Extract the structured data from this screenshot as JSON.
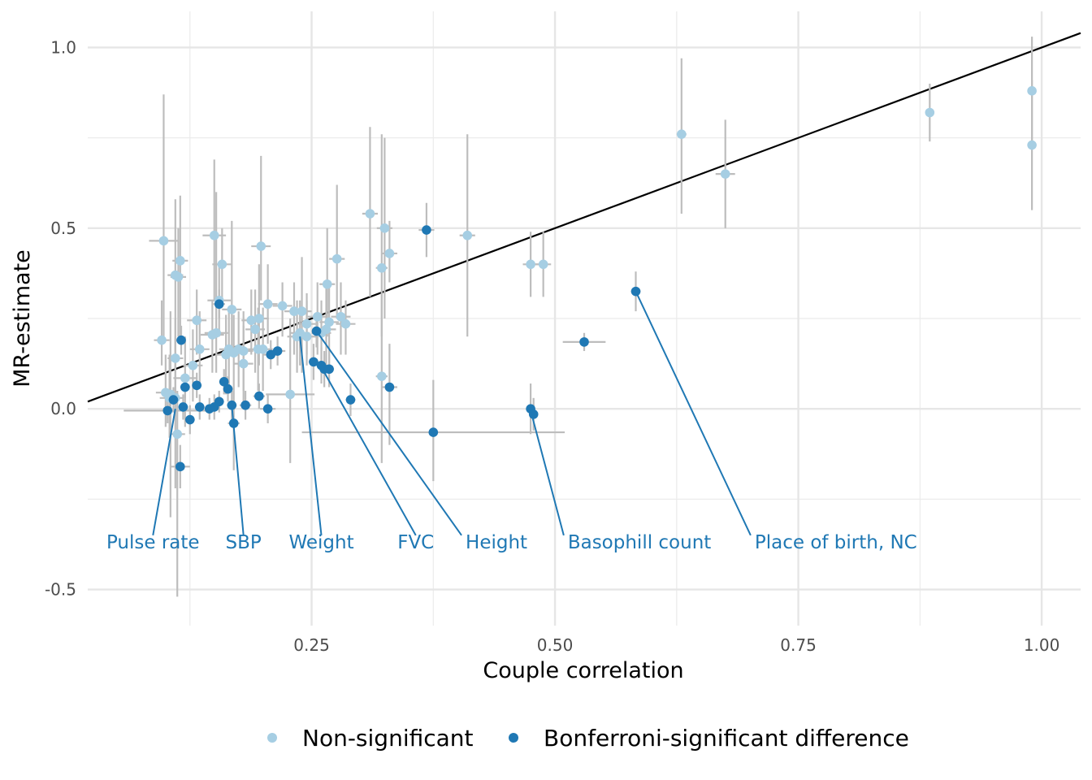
{
  "chart_data": {
    "type": "scatter",
    "title": "",
    "xlabel": "Couple correlation",
    "ylabel": "MR-estimate",
    "xlim": [
      0.02,
      1.04
    ],
    "ylim": [
      -0.6,
      1.1
    ],
    "x_ticks": [
      0.25,
      0.5,
      0.75,
      1.0
    ],
    "x_tick_labels": [
      "0.25",
      "0.50",
      "0.75",
      "1.00"
    ],
    "y_ticks": [
      -0.5,
      0.0,
      0.5,
      1.0
    ],
    "y_tick_labels": [
      "-0.5",
      "0.0",
      "0.5",
      "1.0"
    ],
    "grid": true,
    "legend_position": "bottom",
    "reference_line": {
      "intercept": 0,
      "slope": 1,
      "color": "#000000"
    },
    "colors": {
      "non_significant": "#a6cee3",
      "significant": "#1f78b4",
      "error_bar": "#bdbdbd"
    },
    "legend": [
      {
        "key": "non_significant",
        "label": "Non-significant"
      },
      {
        "key": "significant",
        "label": "Bonferroni-significant difference"
      }
    ],
    "series": [
      {
        "name": "Non-significant",
        "key": "non_significant",
        "points": [
          {
            "x": 0.99,
            "y": 0.88,
            "xerr": 0.003,
            "ylo": 0.74,
            "yhi": 1.03
          },
          {
            "x": 0.99,
            "y": 0.73,
            "xerr": 0.003,
            "ylo": 0.55,
            "yhi": 0.91
          },
          {
            "x": 0.885,
            "y": 0.82,
            "xerr": 0.003,
            "ylo": 0.74,
            "yhi": 0.9
          },
          {
            "x": 0.63,
            "y": 0.76,
            "xerr": 0.005,
            "ylo": 0.54,
            "yhi": 0.97
          },
          {
            "x": 0.675,
            "y": 0.65,
            "xerr": 0.01,
            "ylo": 0.5,
            "yhi": 0.8
          },
          {
            "x": 0.41,
            "y": 0.48,
            "xerr": 0.008,
            "ylo": 0.2,
            "yhi": 0.76
          },
          {
            "x": 0.475,
            "y": 0.4,
            "xerr": 0.008,
            "ylo": 0.31,
            "yhi": 0.49
          },
          {
            "x": 0.488,
            "y": 0.4,
            "xerr": 0.008,
            "ylo": 0.31,
            "yhi": 0.49
          },
          {
            "x": 0.31,
            "y": 0.54,
            "xerr": 0.008,
            "ylo": 0.31,
            "yhi": 0.78
          },
          {
            "x": 0.325,
            "y": 0.5,
            "xerr": 0.008,
            "ylo": 0.25,
            "yhi": 0.75
          },
          {
            "x": 0.33,
            "y": 0.43,
            "xerr": 0.008,
            "ylo": 0.35,
            "yhi": 0.52
          },
          {
            "x": 0.322,
            "y": 0.39,
            "xerr": 0.006,
            "ylo": 0.2,
            "yhi": 0.76
          },
          {
            "x": 0.322,
            "y": 0.09,
            "xerr": 0.006,
            "ylo": -0.15,
            "yhi": 0.32
          },
          {
            "x": 0.276,
            "y": 0.415,
            "xerr": 0.008,
            "ylo": 0.25,
            "yhi": 0.62
          },
          {
            "x": 0.266,
            "y": 0.345,
            "xerr": 0.008,
            "ylo": 0.2,
            "yhi": 0.5
          },
          {
            "x": 0.28,
            "y": 0.255,
            "xerr": 0.01,
            "ylo": 0.15,
            "yhi": 0.35
          },
          {
            "x": 0.285,
            "y": 0.235,
            "xerr": 0.01,
            "ylo": 0.15,
            "yhi": 0.3
          },
          {
            "x": 0.268,
            "y": 0.24,
            "xerr": 0.01,
            "ylo": 0.1,
            "yhi": 0.35
          },
          {
            "x": 0.265,
            "y": 0.22,
            "xerr": 0.01,
            "ylo": 0.1,
            "yhi": 0.35
          },
          {
            "x": 0.26,
            "y": 0.21,
            "xerr": 0.01,
            "ylo": 0.1,
            "yhi": 0.3
          },
          {
            "x": 0.256,
            "y": 0.255,
            "xerr": 0.01,
            "ylo": 0.15,
            "yhi": 0.35
          },
          {
            "x": 0.245,
            "y": 0.235,
            "xerr": 0.01,
            "ylo": 0.15,
            "yhi": 0.32
          },
          {
            "x": 0.24,
            "y": 0.27,
            "xerr": 0.01,
            "ylo": 0.1,
            "yhi": 0.42
          },
          {
            "x": 0.232,
            "y": 0.27,
            "xerr": 0.01,
            "ylo": 0.15,
            "yhi": 0.35
          },
          {
            "x": 0.22,
            "y": 0.285,
            "xerr": 0.01,
            "ylo": 0.2,
            "yhi": 0.35
          },
          {
            "x": 0.245,
            "y": 0.2,
            "xerr": 0.01,
            "ylo": 0.12,
            "yhi": 0.3
          },
          {
            "x": 0.238,
            "y": 0.21,
            "xerr": 0.01,
            "ylo": 0.12,
            "yhi": 0.3
          },
          {
            "x": 0.235,
            "y": 0.2,
            "xerr": 0.01,
            "ylo": 0.1,
            "yhi": 0.3
          },
          {
            "x": 0.228,
            "y": 0.04,
            "xerr": 0.025,
            "ylo": -0.15,
            "yhi": 0.25
          },
          {
            "x": 0.205,
            "y": 0.29,
            "xerr": 0.01,
            "ylo": 0.18,
            "yhi": 0.4
          },
          {
            "x": 0.198,
            "y": 0.45,
            "xerr": 0.01,
            "ylo": 0.3,
            "yhi": 0.7
          },
          {
            "x": 0.196,
            "y": 0.25,
            "xerr": 0.01,
            "ylo": 0.12,
            "yhi": 0.4
          },
          {
            "x": 0.195,
            "y": 0.165,
            "xerr": 0.01,
            "ylo": 0.05,
            "yhi": 0.28
          },
          {
            "x": 0.2,
            "y": 0.165,
            "xerr": 0.01,
            "ylo": 0.05,
            "yhi": 0.28
          },
          {
            "x": 0.188,
            "y": 0.245,
            "xerr": 0.01,
            "ylo": 0.15,
            "yhi": 0.33
          },
          {
            "x": 0.192,
            "y": 0.22,
            "xerr": 0.01,
            "ylo": 0.1,
            "yhi": 0.33
          },
          {
            "x": 0.18,
            "y": 0.16,
            "xerr": 0.01,
            "ylo": 0.05,
            "yhi": 0.27
          },
          {
            "x": 0.18,
            "y": 0.125,
            "xerr": 0.01,
            "ylo": 0.02,
            "yhi": 0.23
          },
          {
            "x": 0.175,
            "y": 0.165,
            "xerr": 0.01,
            "ylo": 0.06,
            "yhi": 0.27
          },
          {
            "x": 0.17,
            "y": 0.155,
            "xerr": 0.01,
            "ylo": 0.05,
            "yhi": 0.26
          },
          {
            "x": 0.165,
            "y": 0.165,
            "xerr": 0.01,
            "ylo": 0.06,
            "yhi": 0.27
          },
          {
            "x": 0.162,
            "y": 0.15,
            "xerr": 0.01,
            "ylo": 0.04,
            "yhi": 0.26
          },
          {
            "x": 0.168,
            "y": 0.275,
            "xerr": 0.01,
            "ylo": 0.15,
            "yhi": 0.52
          },
          {
            "x": 0.158,
            "y": 0.4,
            "xerr": 0.01,
            "ylo": 0.3,
            "yhi": 0.5
          },
          {
            "x": 0.15,
            "y": 0.48,
            "xerr": 0.012,
            "ylo": 0.3,
            "yhi": 0.69
          },
          {
            "x": 0.152,
            "y": 0.21,
            "xerr": 0.012,
            "ylo": 0.1,
            "yhi": 0.6
          },
          {
            "x": 0.148,
            "y": 0.205,
            "xerr": 0.012,
            "ylo": 0.1,
            "yhi": 0.3
          },
          {
            "x": 0.155,
            "y": 0.3,
            "xerr": 0.012,
            "ylo": 0.2,
            "yhi": 0.4
          },
          {
            "x": 0.135,
            "y": 0.165,
            "xerr": 0.01,
            "ylo": 0.06,
            "yhi": 0.27
          },
          {
            "x": 0.132,
            "y": 0.245,
            "xerr": 0.01,
            "ylo": 0.15,
            "yhi": 0.33
          },
          {
            "x": 0.128,
            "y": 0.12,
            "xerr": 0.01,
            "ylo": 0.02,
            "yhi": 0.22
          },
          {
            "x": 0.12,
            "y": 0.085,
            "xerr": 0.012,
            "ylo": -0.05,
            "yhi": 0.2
          },
          {
            "x": 0.115,
            "y": 0.41,
            "xerr": 0.008,
            "ylo": 0.2,
            "yhi": 0.59
          },
          {
            "x": 0.11,
            "y": 0.37,
            "xerr": 0.008,
            "ylo": 0.1,
            "yhi": 0.58
          },
          {
            "x": 0.113,
            "y": 0.365,
            "xerr": 0.008,
            "ylo": 0.2,
            "yhi": 0.5
          },
          {
            "x": 0.11,
            "y": 0.14,
            "xerr": 0.008,
            "ylo": 0.05,
            "yhi": 0.25
          },
          {
            "x": 0.105,
            "y": 0.04,
            "xerr": 0.008,
            "ylo": -0.3,
            "yhi": 0.27
          },
          {
            "x": 0.11,
            "y": 0.03,
            "xerr": 0.008,
            "ylo": -0.22,
            "yhi": 0.2
          },
          {
            "x": 0.112,
            "y": -0.07,
            "xerr": 0.008,
            "ylo": -0.52,
            "yhi": 0.05
          },
          {
            "x": 0.098,
            "y": 0.465,
            "xerr": 0.015,
            "ylo": 0.2,
            "yhi": 0.87
          },
          {
            "x": 0.096,
            "y": 0.19,
            "xerr": 0.008,
            "ylo": 0.12,
            "yhi": 0.3
          },
          {
            "x": 0.1,
            "y": 0.045,
            "xerr": 0.01,
            "ylo": -0.05,
            "yhi": 0.15
          },
          {
            "x": 0.104,
            "y": 0.03,
            "xerr": 0.01,
            "ylo": -0.08,
            "yhi": 0.15
          }
        ]
      },
      {
        "name": "Bonferroni-significant difference",
        "key": "significant",
        "points": [
          {
            "x": 0.583,
            "y": 0.325,
            "xerr": 0.005,
            "ylo": 0.27,
            "yhi": 0.38
          },
          {
            "x": 0.53,
            "y": 0.185,
            "xerr": 0.022,
            "ylo": 0.16,
            "yhi": 0.21
          },
          {
            "x": 0.368,
            "y": 0.495,
            "xerr": 0.008,
            "ylo": 0.42,
            "yhi": 0.57
          },
          {
            "x": 0.475,
            "y": 0.0,
            "xerr": 0.003,
            "ylo": -0.07,
            "yhi": 0.07
          },
          {
            "x": 0.478,
            "y": -0.015,
            "xerr": 0.003,
            "ylo": -0.06,
            "yhi": 0.03
          },
          {
            "x": 0.375,
            "y": -0.065,
            "xerr": 0.135,
            "ylo": -0.2,
            "yhi": 0.08
          },
          {
            "x": 0.33,
            "y": 0.06,
            "xerr": 0.008,
            "ylo": -0.1,
            "yhi": 0.18
          },
          {
            "x": 0.29,
            "y": 0.025,
            "xerr": 0.005,
            "ylo": -0.02,
            "yhi": 0.07
          },
          {
            "x": 0.255,
            "y": 0.215,
            "xerr": 0.005,
            "ylo": 0.17,
            "yhi": 0.26
          },
          {
            "x": 0.252,
            "y": 0.13,
            "xerr": 0.005,
            "ylo": 0.08,
            "yhi": 0.18
          },
          {
            "x": 0.26,
            "y": 0.12,
            "xerr": 0.005,
            "ylo": 0.07,
            "yhi": 0.17
          },
          {
            "x": 0.263,
            "y": 0.11,
            "xerr": 0.005,
            "ylo": 0.06,
            "yhi": 0.16
          },
          {
            "x": 0.268,
            "y": 0.11,
            "xerr": 0.005,
            "ylo": 0.06,
            "yhi": 0.16
          },
          {
            "x": 0.215,
            "y": 0.16,
            "xerr": 0.008,
            "ylo": 0.12,
            "yhi": 0.2
          },
          {
            "x": 0.208,
            "y": 0.15,
            "xerr": 0.008,
            "ylo": 0.11,
            "yhi": 0.19
          },
          {
            "x": 0.205,
            "y": 0.0,
            "xerr": 0.008,
            "ylo": -0.04,
            "yhi": 0.04
          },
          {
            "x": 0.196,
            "y": 0.035,
            "xerr": 0.006,
            "ylo": 0.0,
            "yhi": 0.07
          },
          {
            "x": 0.182,
            "y": 0.01,
            "xerr": 0.006,
            "ylo": -0.03,
            "yhi": 0.05
          },
          {
            "x": 0.17,
            "y": -0.04,
            "xerr": 0.006,
            "ylo": -0.17,
            "yhi": 0.05
          },
          {
            "x": 0.168,
            "y": 0.01,
            "xerr": 0.005,
            "ylo": -0.03,
            "yhi": 0.05
          },
          {
            "x": 0.164,
            "y": 0.055,
            "xerr": 0.005,
            "ylo": 0.02,
            "yhi": 0.09
          },
          {
            "x": 0.16,
            "y": 0.075,
            "xerr": 0.005,
            "ylo": 0.04,
            "yhi": 0.11
          },
          {
            "x": 0.155,
            "y": 0.29,
            "xerr": 0.006,
            "ylo": 0.25,
            "yhi": 0.33
          },
          {
            "x": 0.155,
            "y": 0.02,
            "xerr": 0.005,
            "ylo": -0.01,
            "yhi": 0.05
          },
          {
            "x": 0.15,
            "y": 0.005,
            "xerr": 0.005,
            "ylo": -0.03,
            "yhi": 0.04
          },
          {
            "x": 0.145,
            "y": 0.0,
            "xerr": 0.005,
            "ylo": -0.03,
            "yhi": 0.03
          },
          {
            "x": 0.135,
            "y": 0.005,
            "xerr": 0.005,
            "ylo": -0.03,
            "yhi": 0.04
          },
          {
            "x": 0.132,
            "y": 0.065,
            "xerr": 0.005,
            "ylo": 0.03,
            "yhi": 0.1
          },
          {
            "x": 0.125,
            "y": -0.03,
            "xerr": 0.005,
            "ylo": -0.07,
            "yhi": 0.01
          },
          {
            "x": 0.12,
            "y": 0.06,
            "xerr": 0.005,
            "ylo": 0.03,
            "yhi": 0.1
          },
          {
            "x": 0.118,
            "y": 0.005,
            "xerr": 0.005,
            "ylo": -0.03,
            "yhi": 0.04
          },
          {
            "x": 0.116,
            "y": 0.19,
            "xerr": 0.005,
            "ylo": 0.15,
            "yhi": 0.23
          },
          {
            "x": 0.115,
            "y": -0.16,
            "xerr": 0.01,
            "ylo": -0.22,
            "yhi": -0.1
          },
          {
            "x": 0.108,
            "y": 0.025,
            "xerr": 0.005,
            "ylo": -0.01,
            "yhi": 0.06
          },
          {
            "x": 0.102,
            "y": -0.005,
            "xerr": 0.045,
            "ylo": -0.04,
            "yhi": 0.03
          }
        ]
      }
    ],
    "annotations": [
      {
        "label": "Pulse rate",
        "x": 0.11,
        "y": 0.0,
        "label_x_data": 0.087,
        "label_y_data": -0.35,
        "anchor": "middle"
      },
      {
        "label": "SBP",
        "x": 0.168,
        "y": 0.01,
        "label_x_data": 0.18,
        "label_y_data": -0.35,
        "anchor": "middle"
      },
      {
        "label": "Weight",
        "x": 0.238,
        "y": 0.2,
        "label_x_data": 0.26,
        "label_y_data": -0.35,
        "anchor": "middle"
      },
      {
        "label": "FVC",
        "x": 0.258,
        "y": 0.125,
        "label_x_data": 0.357,
        "label_y_data": -0.35,
        "anchor": "middle"
      },
      {
        "label": "Height",
        "x": 0.255,
        "y": 0.215,
        "label_x_data": 0.404,
        "label_y_data": -0.35,
        "anchor": "start"
      },
      {
        "label": "Basophill count",
        "x": 0.475,
        "y": -0.005,
        "label_x_data": 0.509,
        "label_y_data": -0.35,
        "anchor": "start"
      },
      {
        "label": "Place of birth, NC",
        "x": 0.583,
        "y": 0.325,
        "label_x_data": 0.701,
        "label_y_data": -0.35,
        "anchor": "start"
      }
    ]
  }
}
